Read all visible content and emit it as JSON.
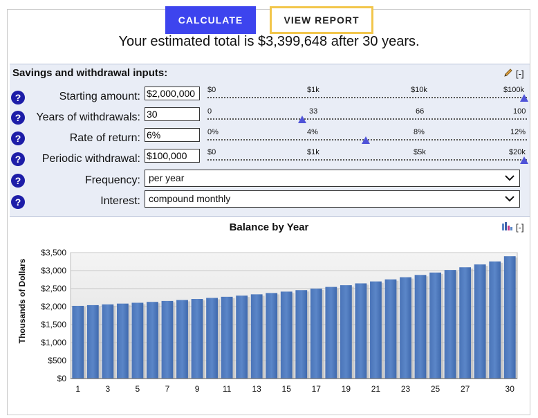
{
  "buttons": {
    "calculate": "CALCULATE",
    "view_report": "VIEW REPORT"
  },
  "summary": "Your estimated total is $3,399,648 after 30 years.",
  "inputs_panel": {
    "title": "Savings and withdrawal inputs:",
    "collapse": "[-]",
    "rows": [
      {
        "label": "Starting amount:",
        "value": "$2,000,000",
        "ticks": [
          "$0",
          "$1k",
          "$10k",
          "$100k"
        ],
        "thumb_fraction": 1.0
      },
      {
        "label": "Years of withdrawals:",
        "value": "30",
        "ticks": [
          "0",
          "33",
          "66",
          "100"
        ],
        "thumb_fraction": 0.3
      },
      {
        "label": "Rate of return:",
        "value": "6%",
        "ticks": [
          "0%",
          "4%",
          "8%",
          "12%"
        ],
        "thumb_fraction": 0.5
      },
      {
        "label": "Periodic withdrawal:",
        "value": "$100,000",
        "ticks": [
          "$0",
          "$1k",
          "$5k",
          "$20k"
        ],
        "thumb_fraction": 1.0
      }
    ],
    "frequency": {
      "label": "Frequency:",
      "selected": "per year"
    },
    "interest": {
      "label": "Interest:",
      "selected": "compound monthly"
    },
    "help_glyph": "?"
  },
  "chart_header": {
    "title": "Balance by Year",
    "collapse": "[-]"
  },
  "chart_data": {
    "type": "bar",
    "title": "Balance by Year",
    "xlabel": "",
    "ylabel": "Thousands of Dollars",
    "ylim": [
      0,
      3500
    ],
    "yticks": [
      "$0",
      "$500",
      "$1,000",
      "$1,500",
      "$2,000",
      "$2,500",
      "$3,000",
      "$3,500"
    ],
    "categories": [
      1,
      2,
      3,
      4,
      5,
      6,
      7,
      8,
      9,
      10,
      11,
      12,
      13,
      14,
      15,
      16,
      17,
      18,
      19,
      20,
      21,
      22,
      23,
      24,
      25,
      26,
      27,
      28,
      29,
      30
    ],
    "x_tick_labels": [
      "1",
      "3",
      "5",
      "7",
      "9",
      "11",
      "13",
      "15",
      "17",
      "19",
      "21",
      "23",
      "25",
      "27",
      "30"
    ],
    "values": [
      2020,
      2040,
      2061,
      2083,
      2106,
      2130,
      2156,
      2183,
      2211,
      2241,
      2272,
      2305,
      2340,
      2377,
      2416,
      2457,
      2500,
      2546,
      2594,
      2645,
      2699,
      2756,
      2816,
      2879,
      2946,
      3017,
      3092,
      3171,
      3255,
      3400
    ],
    "bar_color": "#5b86c8",
    "grid": true,
    "legend": "none"
  }
}
